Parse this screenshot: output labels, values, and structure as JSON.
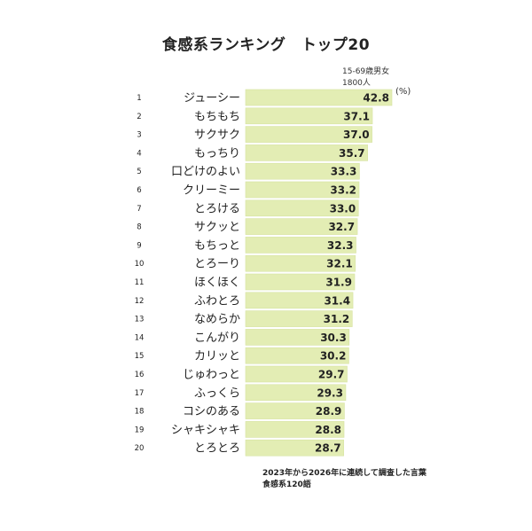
{
  "title": "食感系ランキング　トップ20",
  "header": {
    "line1": "15-69歳男女",
    "line2": "1800人",
    "unit": "(%)"
  },
  "footnote": {
    "line1": "2023年から2026年に連続して調査した言葉",
    "line2": "食感系120語"
  },
  "colors": {
    "bar": "#e3edb4",
    "bar_stroke": "#d6e3a0",
    "text": "#222222"
  },
  "chart_data": {
    "type": "bar",
    "orientation": "horizontal",
    "title": "食感系ランキング　トップ20",
    "ranks": [
      1,
      2,
      3,
      4,
      5,
      6,
      7,
      8,
      9,
      10,
      11,
      12,
      13,
      14,
      15,
      16,
      17,
      18,
      19,
      20
    ],
    "categories": [
      "ジューシー",
      "もちもち",
      "サクサク",
      "もっちり",
      "口どけのよい",
      "クリーミー",
      "とろける",
      "サクッと",
      "もちっと",
      "とろーり",
      "ほくほく",
      "ふわとろ",
      "なめらか",
      "こんがり",
      "カリッと",
      "じゅわっと",
      "ふっくら",
      "コシのある",
      "シャキシャキ",
      "とろとろ"
    ],
    "values": [
      42.8,
      37.1,
      37.0,
      35.7,
      33.3,
      33.2,
      33.0,
      32.7,
      32.3,
      32.1,
      31.9,
      31.4,
      31.2,
      30.3,
      30.2,
      29.7,
      29.3,
      28.9,
      28.8,
      28.7
    ],
    "value_labels": [
      "42.8",
      "37.1",
      "37.0",
      "35.7",
      "33.3",
      "33.2",
      "33.0",
      "32.7",
      "32.3",
      "32.1",
      "31.9",
      "31.4",
      "31.2",
      "30.3",
      "30.2",
      "29.7",
      "29.3",
      "28.9",
      "28.8",
      "28.7"
    ],
    "xlim": [
      0,
      42.8
    ],
    "grid": false,
    "legend": "none"
  }
}
